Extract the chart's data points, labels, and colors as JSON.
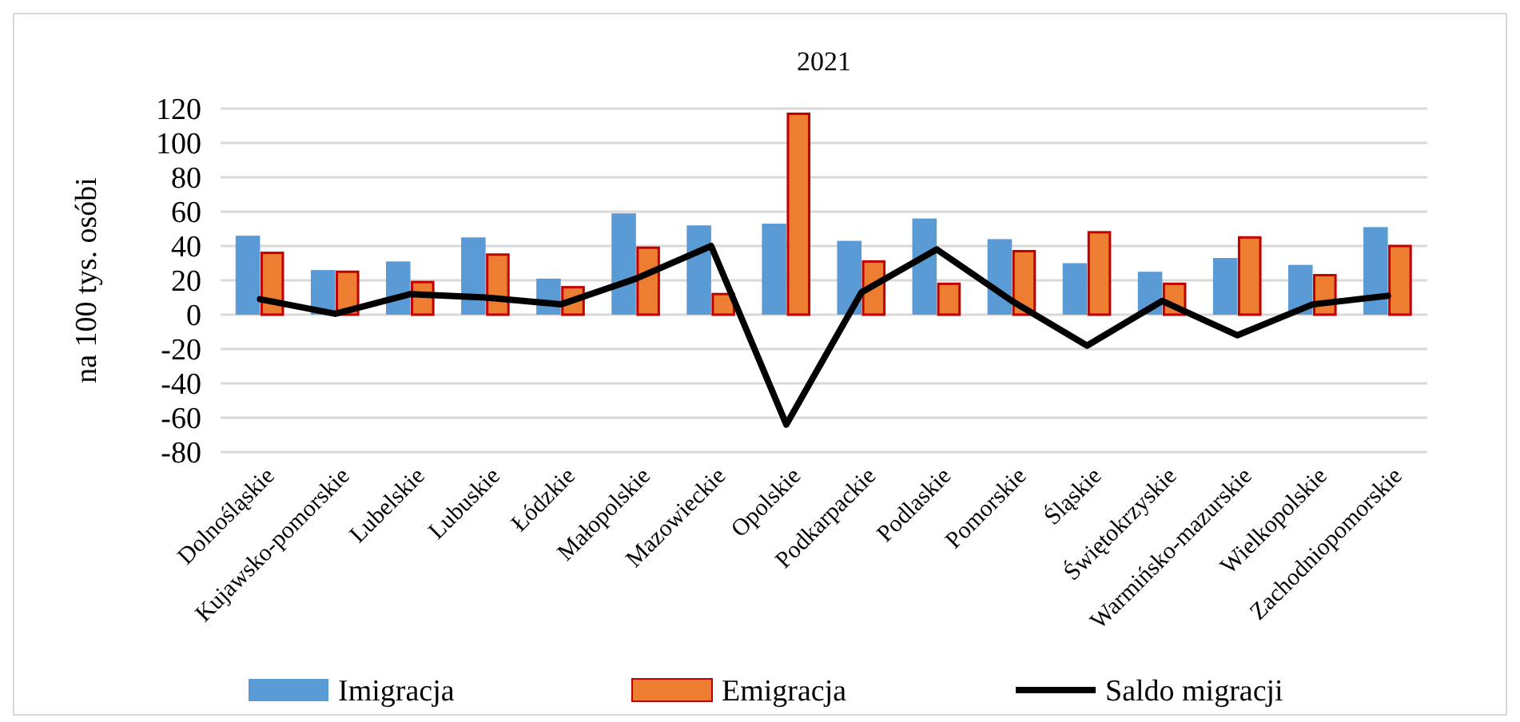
{
  "chart_data": {
    "type": "bar",
    "title": "2021",
    "ylabel": "na 100 tys. osóbi",
    "categories": [
      "Dolnośląskie",
      "Kujawsko-pomorskie",
      "Lubelskie",
      "Lubuskie",
      "Łódzkie",
      "Małopolskie",
      "Mazowieckie",
      "Opolskie",
      "Podkarpackie",
      "Podlaskie",
      "Pomorskie",
      "Śląskie",
      "Świętokrzyskie",
      "Warmińsko-mazurskie",
      "Wielkopolskie",
      "Zachodniopomorskie"
    ],
    "series": [
      {
        "name": "Imigracja",
        "color": "#5b9bd5",
        "values": [
          46,
          26,
          31,
          45,
          21,
          59,
          52,
          53,
          43,
          56,
          44,
          30,
          25,
          33,
          29,
          51
        ]
      },
      {
        "name": "Emigracja",
        "color": "#ed7d31",
        "values": [
          36,
          25,
          19,
          35,
          16,
          39,
          12,
          117,
          31,
          18,
          37,
          48,
          18,
          45,
          23,
          40
        ]
      },
      {
        "name": "Saldo migracji",
        "type": "line",
        "color": "#000000",
        "values": [
          9,
          0.5,
          12,
          10,
          6,
          21,
          40,
          -64,
          13,
          38,
          8,
          -18,
          8,
          -12,
          6,
          11
        ]
      }
    ],
    "ylim": [
      -80,
      120
    ],
    "yticks": [
      -80,
      -60,
      -40,
      -20,
      0,
      20,
      40,
      60,
      80,
      100,
      120
    ],
    "grid": "y",
    "legend": "bottom"
  }
}
